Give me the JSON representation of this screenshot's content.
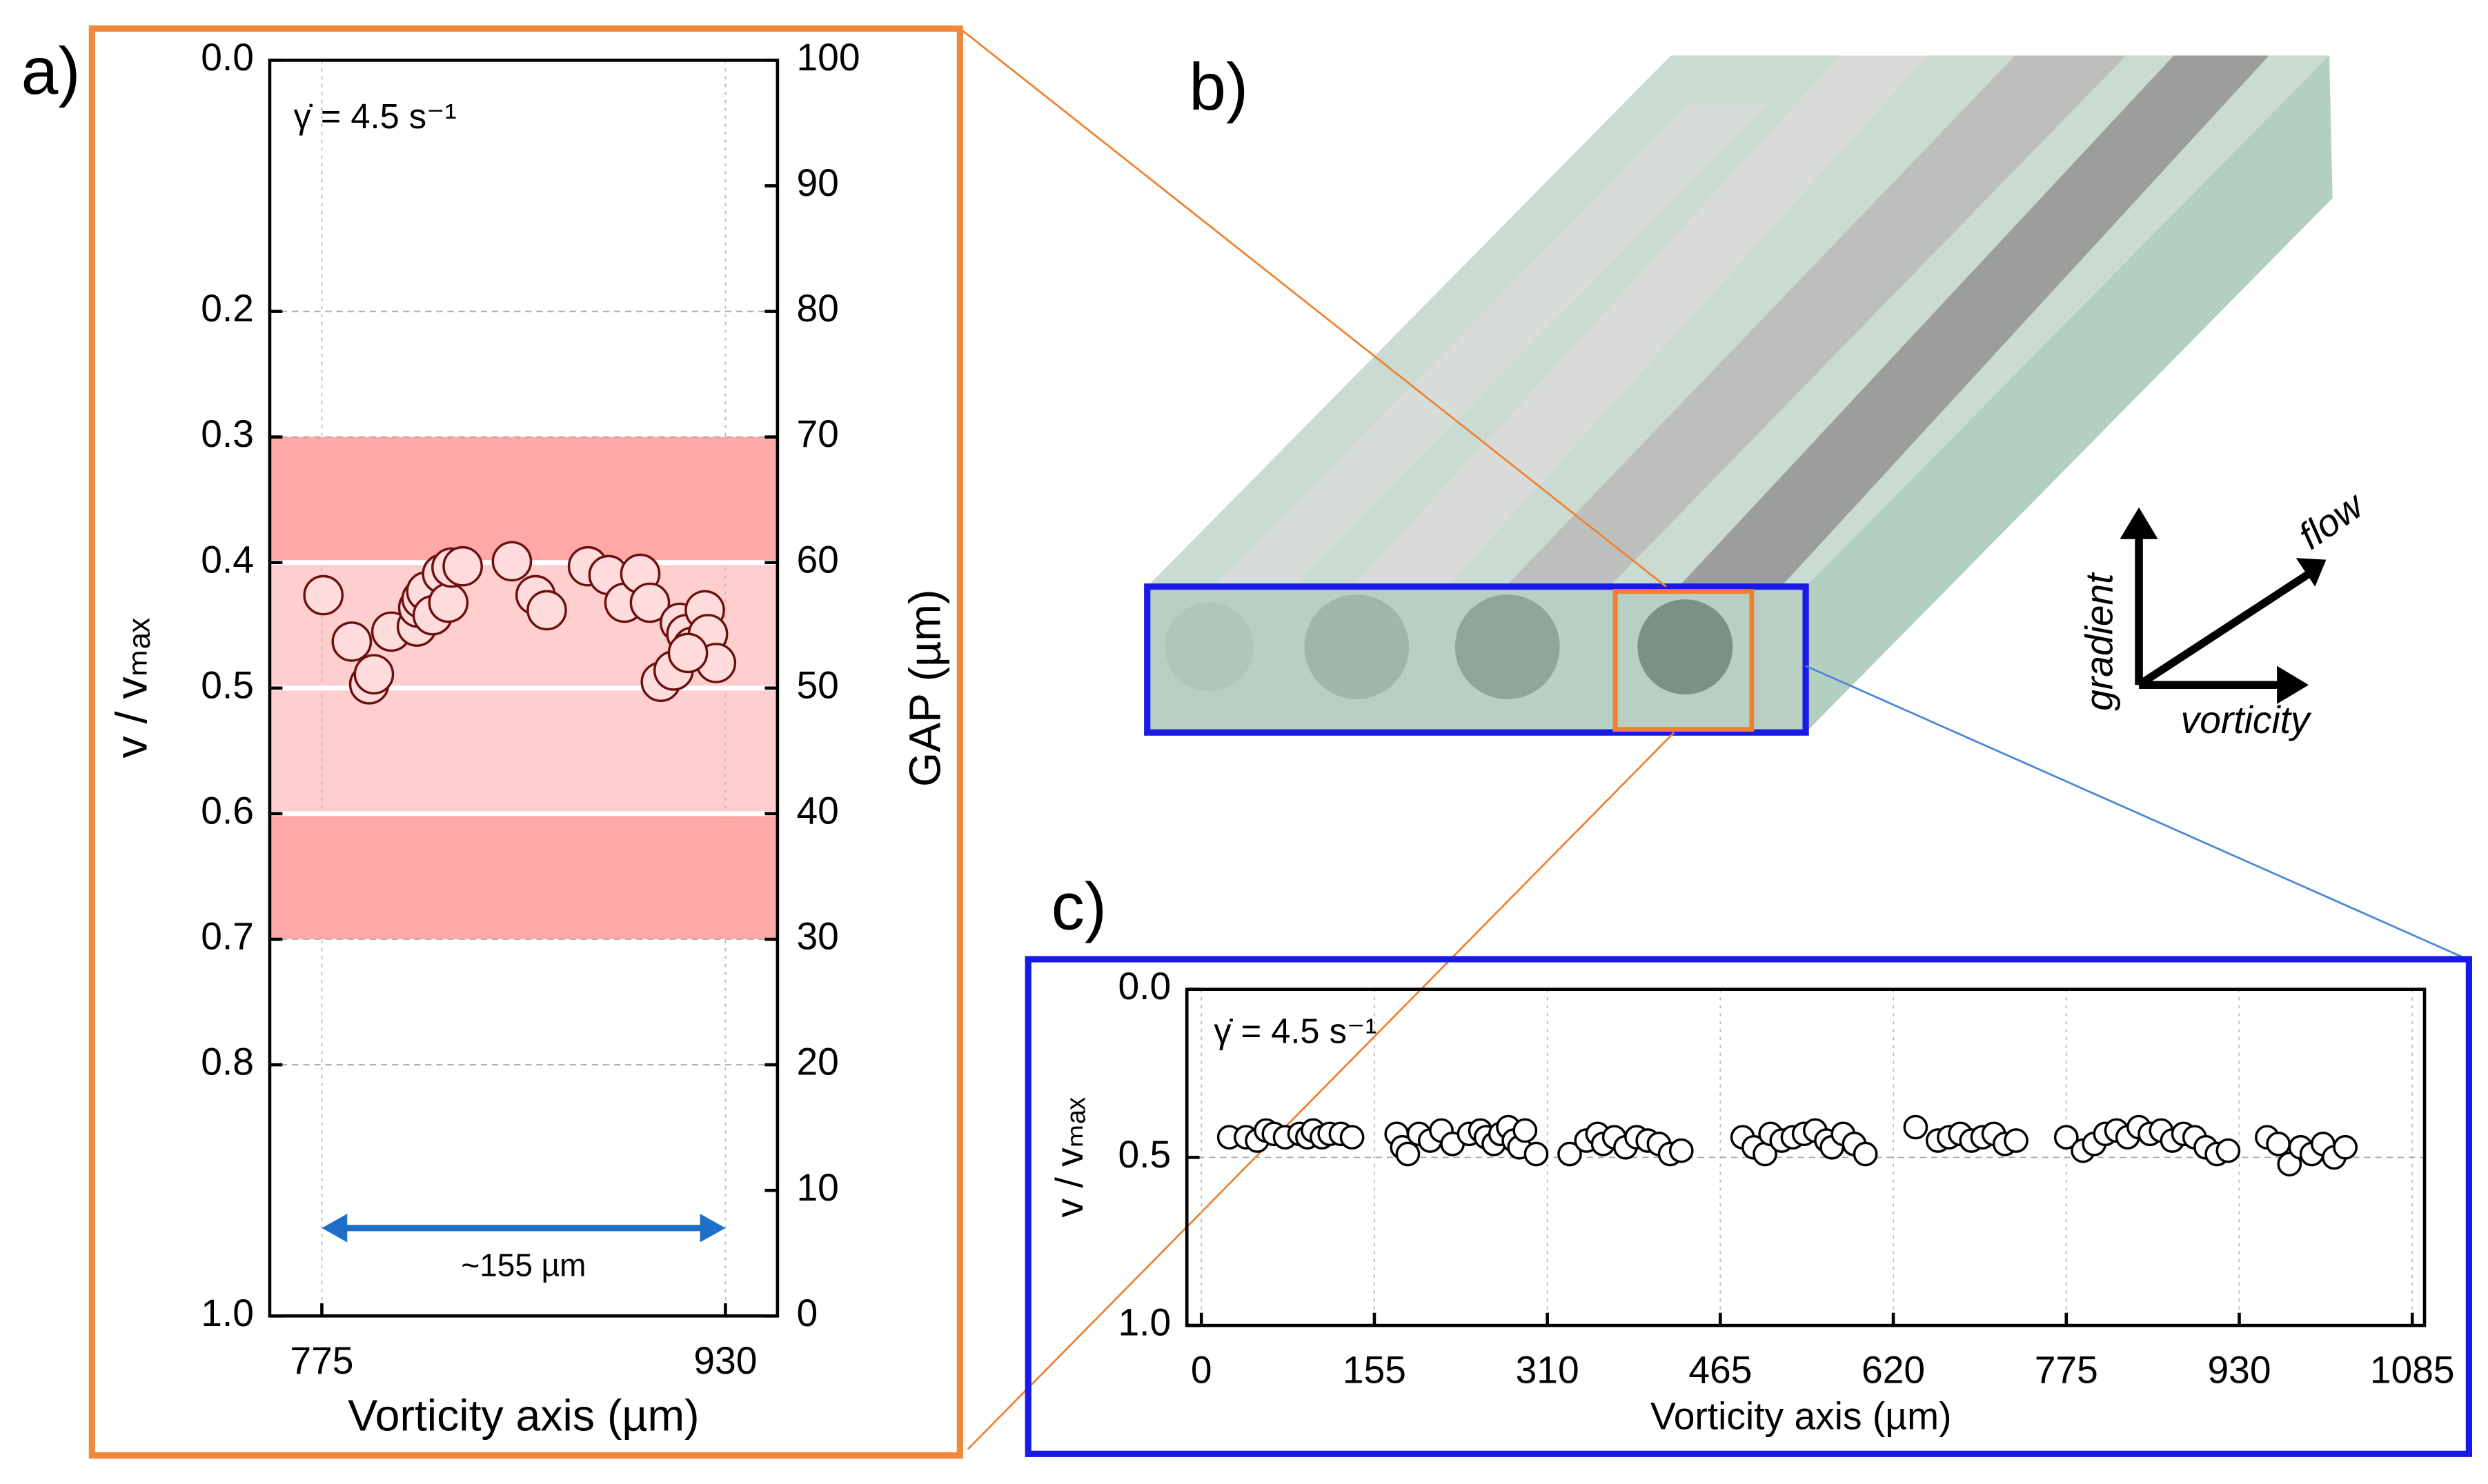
{
  "chart_data": [
    {
      "type": "scatter",
      "panel_label": "a)",
      "annotation": "γ̇ = 4.5 s⁻¹",
      "x_label": "Vorticity axis (µm)",
      "y_label": "v / vₘₐₓ",
      "y2_label": "GAP (µm)",
      "xlim": [
        755,
        950
      ],
      "xticks": [
        775,
        930
      ],
      "ylim": [
        0,
        1
      ],
      "y_inverted": true,
      "yticks": [
        {
          "value": 0,
          "label": "0.0"
        },
        0.2,
        0.3,
        0.4,
        0.5,
        0.6,
        0.7,
        0.8,
        {
          "value": 1,
          "label": "1.0"
        }
      ],
      "y2lim": [
        0,
        100
      ],
      "y2ticks": [
        0,
        10,
        20,
        30,
        40,
        50,
        60,
        70,
        80,
        90,
        100
      ],
      "grid": true,
      "bands": [
        {
          "from": 0.3,
          "to": 0.7,
          "color": "#ffa8a8"
        },
        {
          "from": 0.4,
          "to": 0.6,
          "color": "#ffcfcf"
        }
      ],
      "highlight_lines": [
        0.4,
        0.5,
        0.6
      ],
      "span": {
        "from": 775,
        "to": 930,
        "y": 0.93,
        "label": "~155 µm",
        "color": "#1f6fc8"
      },
      "series": [
        {
          "color": "#6b0f0f",
          "fill": "#ffdcdc",
          "x": [
            775.6,
            786.5,
            793.2,
            795,
            801.7,
            811.5,
            812,
            813.3,
            815.1,
            817.6,
            821.2,
            823.6,
            824.8,
            829.1,
            848,
            857.1,
            861.4,
            877.2,
            885.1,
            891.2,
            897.3,
            901,
            905.2,
            910.1,
            912.5,
            915,
            917.4,
            922.1,
            923.3,
            926.4,
            915.6
          ],
          "values": [
            0.426,
            0.463,
            0.497,
            0.489,
            0.455,
            0.451,
            0.436,
            0.429,
            0.423,
            0.442,
            0.409,
            0.432,
            0.404,
            0.403,
            0.399,
            0.426,
            0.438,
            0.403,
            0.41,
            0.432,
            0.409,
            0.432,
            0.495,
            0.486,
            0.448,
            0.457,
            0.467,
            0.438,
            0.457,
            0.48,
            0.472
          ]
        }
      ]
    },
    {
      "type": "scatter",
      "panel_label": "c)",
      "annotation": "γ̇ = 4.5 s⁻¹",
      "x_label": "Vorticity axis (µm)",
      "y_label": "v / vₘₐₓ",
      "xlim": [
        -13,
        1096
      ],
      "xticks": [
        0,
        155,
        310,
        465,
        620,
        775,
        930,
        1085
      ],
      "ylim": [
        0,
        1
      ],
      "y_inverted": true,
      "yticks": [
        {
          "value": 0,
          "label": "0.0"
        },
        0.5,
        {
          "value": 1,
          "label": "1.0"
        }
      ],
      "grid": true,
      "series": [
        {
          "color": "#000000",
          "fill": "#ffffff",
          "x": [
            25,
            40,
            50,
            58,
            65,
            75,
            88,
            95,
            100,
            108,
            115,
            125,
            135,
            175,
            180,
            185,
            195,
            205,
            215,
            225,
            240,
            250,
            255,
            262,
            268,
            275,
            280,
            285,
            290,
            300,
            330,
            345,
            355,
            360,
            370,
            380,
            390,
            400,
            410,
            420,
            430,
            485,
            495,
            505,
            510,
            520,
            530,
            540,
            550,
            560,
            565,
            575,
            585,
            595,
            640,
            660,
            670,
            680,
            690,
            700,
            710,
            720,
            730,
            775,
            790,
            800,
            810,
            820,
            830,
            840,
            850,
            860,
            870,
            880,
            890,
            900,
            910,
            920,
            955,
            965,
            975,
            985,
            995,
            1005,
            1015,
            1025
          ],
          "values": [
            0.44,
            0.44,
            0.45,
            0.42,
            0.43,
            0.44,
            0.43,
            0.44,
            0.42,
            0.44,
            0.43,
            0.43,
            0.44,
            0.43,
            0.47,
            0.49,
            0.43,
            0.45,
            0.42,
            0.46,
            0.43,
            0.42,
            0.44,
            0.46,
            0.43,
            0.41,
            0.45,
            0.47,
            0.42,
            0.49,
            0.49,
            0.45,
            0.43,
            0.46,
            0.44,
            0.47,
            0.44,
            0.45,
            0.46,
            0.49,
            0.48,
            0.44,
            0.47,
            0.49,
            0.43,
            0.45,
            0.44,
            0.43,
            0.42,
            0.45,
            0.47,
            0.43,
            0.46,
            0.49,
            0.41,
            0.45,
            0.44,
            0.43,
            0.45,
            0.44,
            0.43,
            0.46,
            0.45,
            0.44,
            0.48,
            0.46,
            0.43,
            0.42,
            0.44,
            0.41,
            0.43,
            0.42,
            0.45,
            0.43,
            0.44,
            0.47,
            0.49,
            0.48,
            0.44,
            0.46,
            0.52,
            0.47,
            0.49,
            0.46,
            0.5,
            0.47
          ]
        }
      ]
    }
  ],
  "diagram": {
    "panel_label": "b)",
    "axis_gradient": "gradient",
    "axis_flow": "flow",
    "axis_vorticity": "vorticity"
  }
}
